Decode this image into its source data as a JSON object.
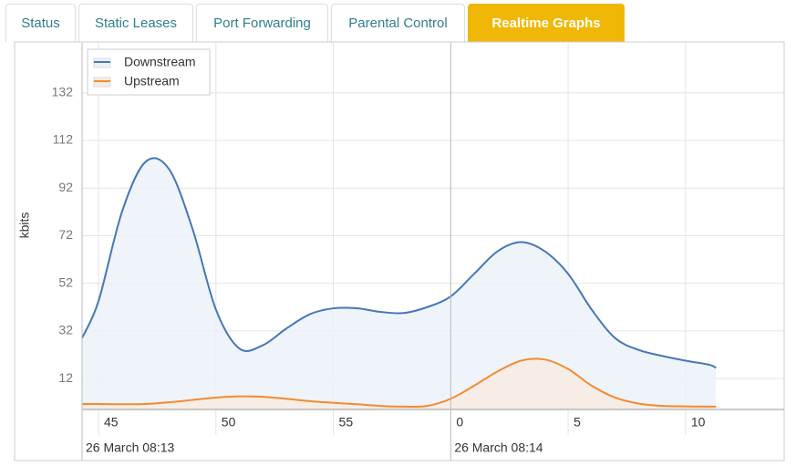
{
  "tabs": [
    "Status",
    "Static Leases",
    "Port Forwarding",
    "Parental Control",
    "Realtime Graphs"
  ],
  "chart_data": {
    "type": "area",
    "y_label": "kbits",
    "x": [
      44.3,
      45,
      46,
      47,
      48,
      49,
      50,
      51,
      52,
      53,
      54,
      55,
      56,
      57,
      58,
      59,
      60,
      61,
      62,
      63,
      64,
      65,
      66,
      67,
      68,
      69,
      70,
      71,
      71.3
    ],
    "series": [
      {
        "name": "Downstream",
        "color": "#4677b6",
        "fill": "#ecf1f9",
        "values": [
          29,
          44.5,
          82,
          103,
          100,
          75,
          41,
          24.6,
          26,
          33,
          39,
          41.5,
          41.5,
          40,
          39.5,
          42,
          46.5,
          56,
          65.5,
          69.3,
          65.5,
          56,
          41,
          29,
          24,
          21.5,
          19.5,
          17.8,
          16.5
        ]
      },
      {
        "name": "Upstream",
        "color": "#f28b30",
        "fill": "#f8ebe3",
        "values": [
          1.3,
          1.3,
          1.2,
          1.3,
          2,
          3,
          4,
          4.5,
          4.3,
          3.5,
          2.5,
          1.8,
          1.2,
          0.5,
          0.2,
          0.5,
          3.5,
          9,
          15,
          19.5,
          20,
          16,
          9,
          4,
          1.5,
          0.5,
          0.3,
          0.2,
          0.2
        ]
      }
    ],
    "xlim": [
      44.3,
      74.2
    ],
    "xticks": [
      45,
      50,
      55,
      {
        "value": 60,
        "label": "0"
      },
      {
        "value": 65,
        "label": "5"
      },
      {
        "value": 70,
        "label": "10"
      }
    ],
    "x_date_labels": [
      "26 March 08:13",
      "26 March 08:14"
    ],
    "ylim": [
      -1,
      153
    ],
    "yticks": [
      12,
      32,
      52,
      72,
      92,
      112,
      132
    ],
    "grid": true,
    "legend": "top-left"
  }
}
